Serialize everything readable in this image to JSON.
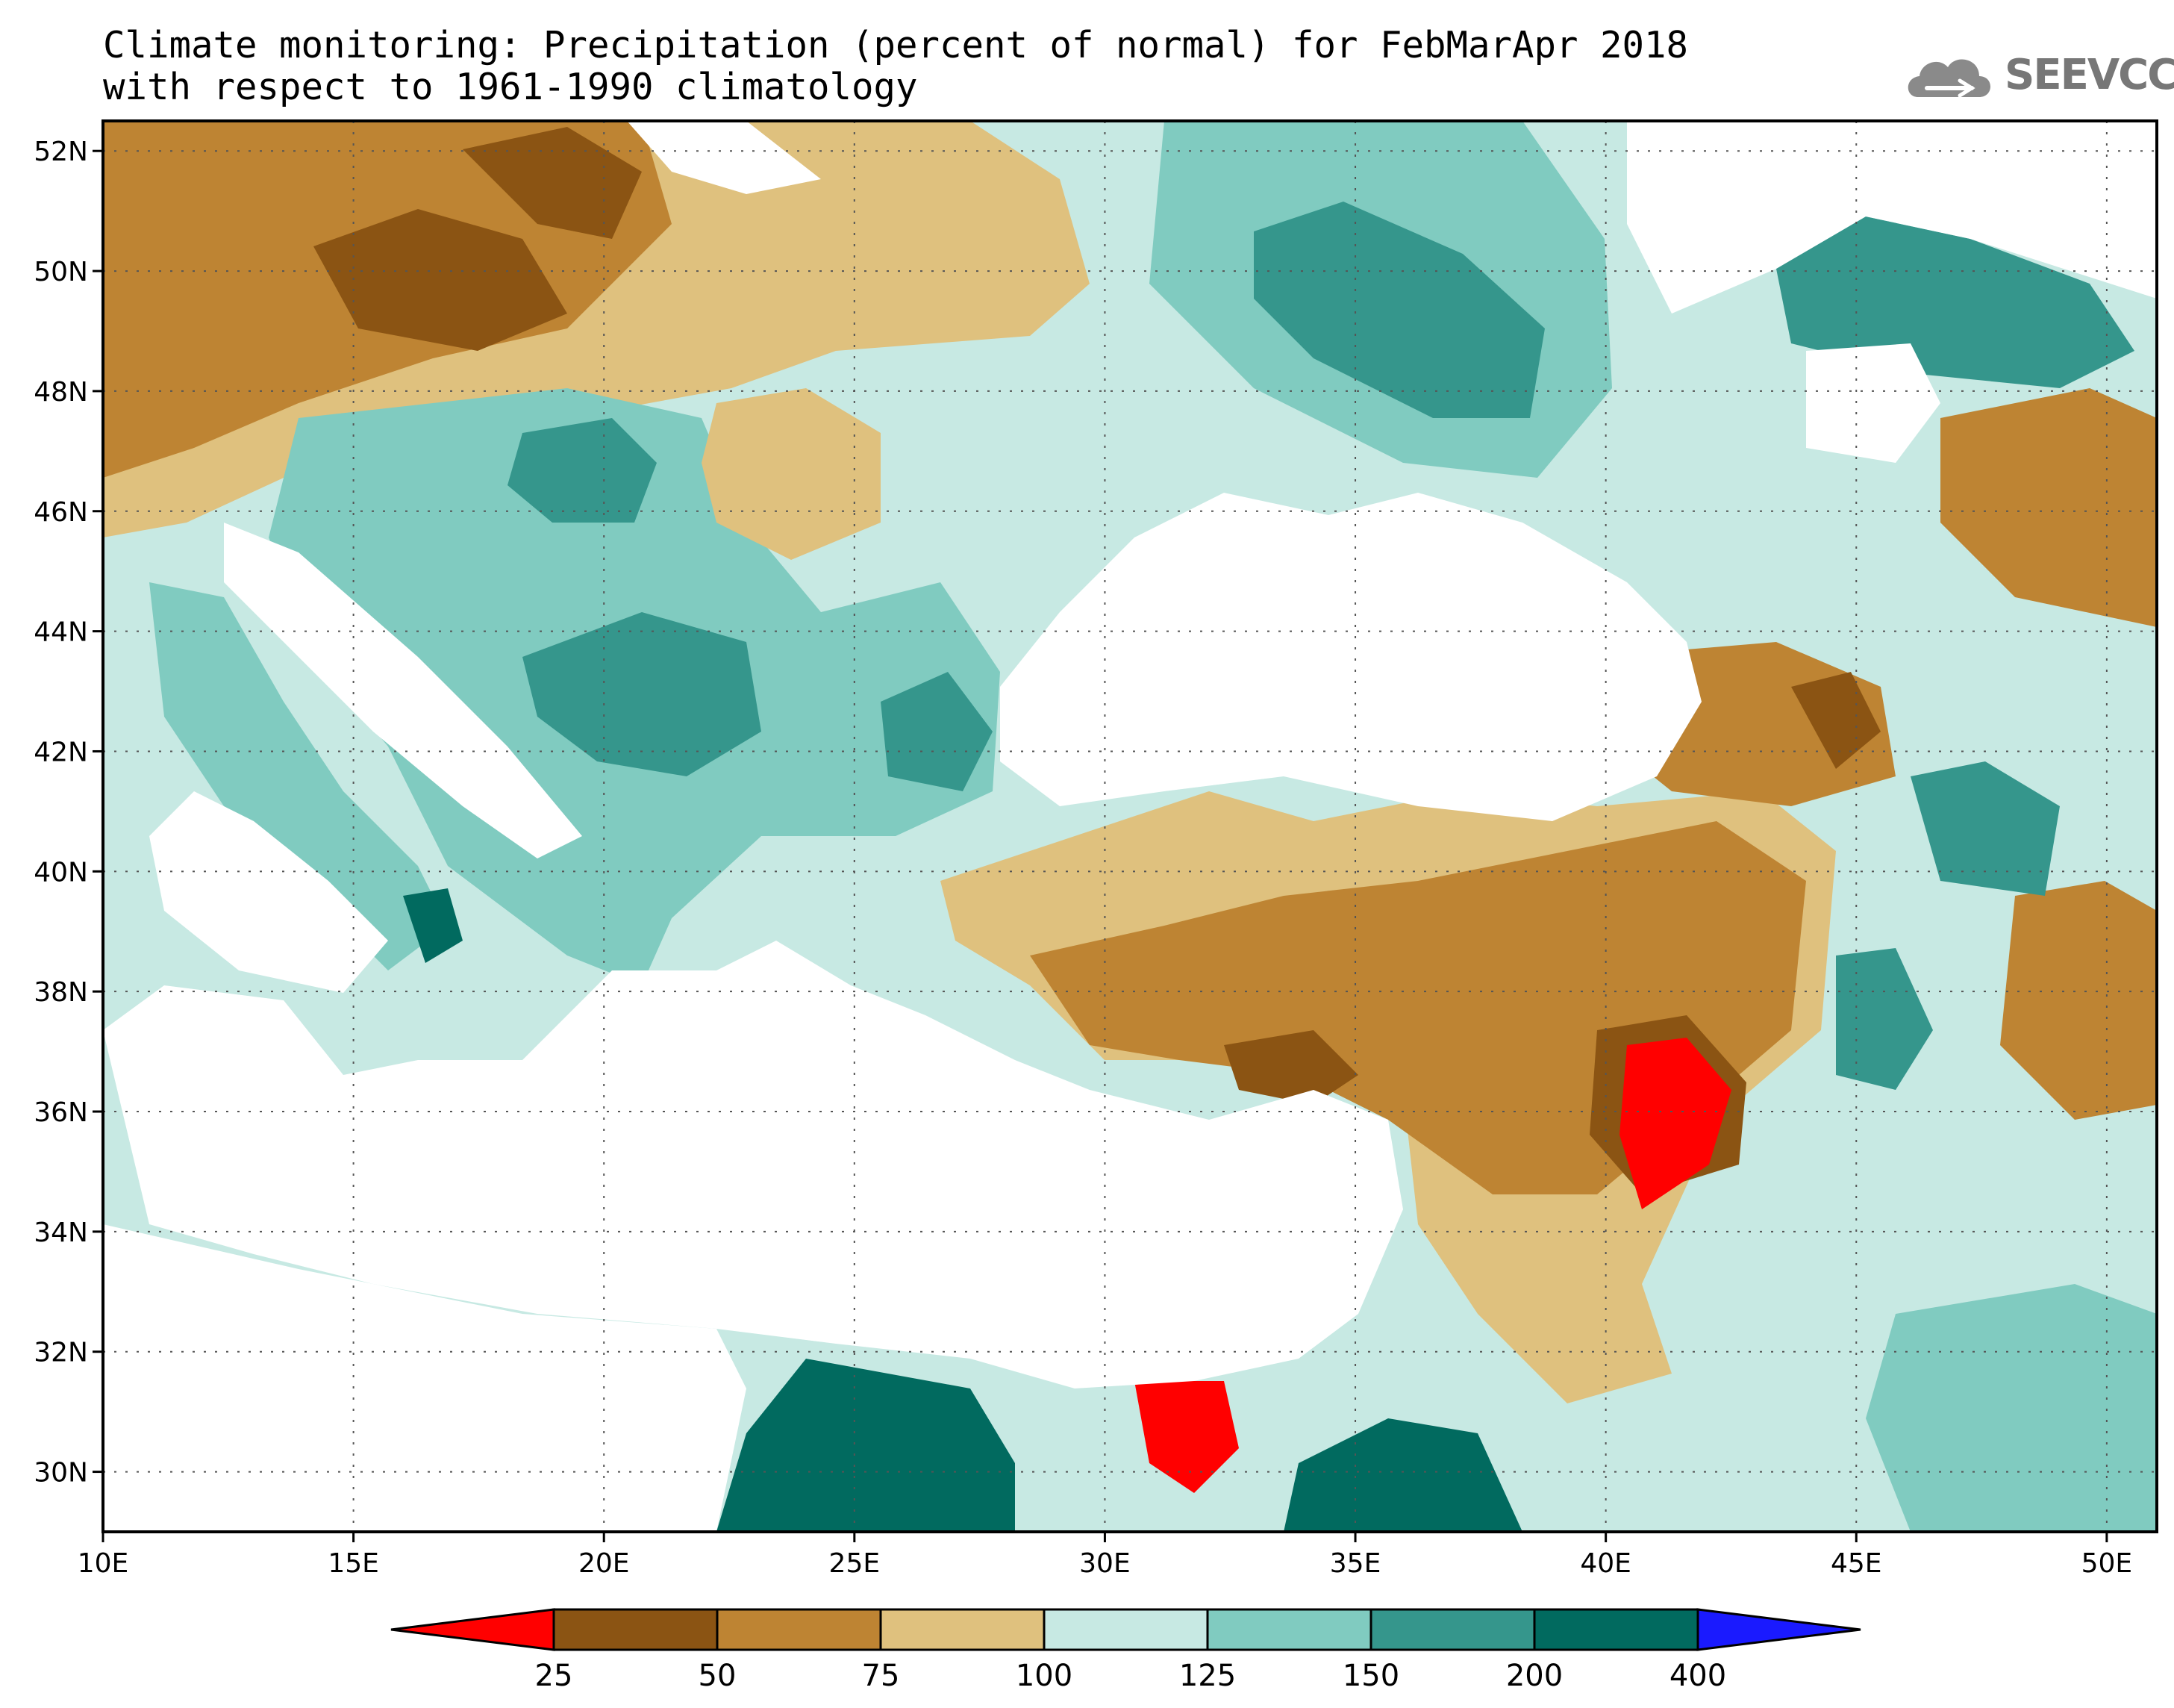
{
  "title": {
    "line1": "Climate monitoring: Precipitation (percent of normal) for FebMarApr 2018",
    "line2": "with respect to 1961-1990 climatology"
  },
  "logo": {
    "text": "SEEVCCC",
    "icon": "cloud-icon"
  },
  "map": {
    "lon_range": [
      10,
      51
    ],
    "lat_range": [
      29,
      52.5
    ],
    "x_ticks": [
      "10E",
      "15E",
      "20E",
      "25E",
      "30E",
      "35E",
      "40E",
      "45E",
      "50E"
    ],
    "y_ticks": [
      "30N",
      "32N",
      "34N",
      "36N",
      "38N",
      "40N",
      "42N",
      "44N",
      "46N",
      "48N",
      "50N",
      "52N"
    ],
    "grid": "dotted"
  },
  "colorbar": {
    "labels": [
      "25",
      "50",
      "75",
      "100",
      "125",
      "150",
      "200",
      "400"
    ],
    "colors": [
      "#ff0000",
      "#8b5413",
      "#be8433",
      "#dfc17e",
      "#c7e9e3",
      "#80cbc0",
      "#35968c",
      "#016a5f",
      "#1a1aff"
    ]
  }
}
